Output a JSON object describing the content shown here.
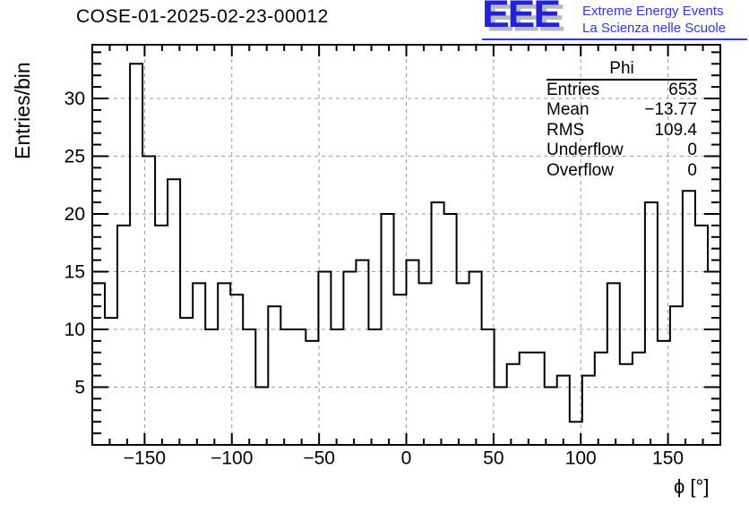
{
  "logo": {
    "eee": "EEE",
    "line1": "Extreme Energy Events",
    "line2": "La Scienza nelle Scuole",
    "eee_color": "#2222dd",
    "text_color": "#3333ff",
    "shadow_color": "#b9b9b9"
  },
  "stats": {
    "title": "Phi",
    "rows": [
      {
        "label": "Entries",
        "value": "653"
      },
      {
        "label": "Mean",
        "value": "−13.77"
      },
      {
        "label": "RMS",
        "value": "109.4"
      },
      {
        "label": "Underflow",
        "value": "0"
      },
      {
        "label": "Overflow",
        "value": "0"
      }
    ]
  },
  "chart_data": {
    "type": "bar",
    "style": "step-outline-histogram",
    "title": "COSE-01-2025-02-23-00012",
    "xlabel": "ϕ [°]",
    "ylabel": "Entries/bin",
    "xlim": [
      -180,
      180
    ],
    "ylim": [
      0,
      34.65
    ],
    "n_bins": 50,
    "bin_start": -180,
    "bin_width": 7.2,
    "values": [
      14,
      11,
      19,
      33,
      25,
      19,
      23,
      11,
      14,
      10,
      14,
      13,
      10,
      5,
      12,
      10,
      10,
      9,
      15,
      10,
      15,
      16,
      10,
      20,
      13,
      16,
      14,
      21,
      20,
      14,
      15,
      10,
      5,
      7,
      8,
      8,
      5,
      6,
      2,
      6,
      8,
      14,
      7,
      8,
      21,
      9,
      12,
      22,
      19,
      15
    ],
    "x_major_ticks": [
      -150,
      -100,
      -50,
      0,
      50,
      100,
      150
    ],
    "x_tick_labels": [
      "−150",
      "−100",
      "−50",
      "0",
      "50",
      "100",
      "150"
    ],
    "x_minor_step": 10,
    "y_major_ticks": [
      5,
      10,
      15,
      20,
      25,
      30
    ],
    "y_tick_labels": [
      "5",
      "10",
      "15",
      "20",
      "25",
      "30"
    ],
    "y_minor_step": 1,
    "grid": true,
    "grid_color": "#9a9a9a",
    "line_color": "#000000",
    "background_color": "#ffffff"
  }
}
